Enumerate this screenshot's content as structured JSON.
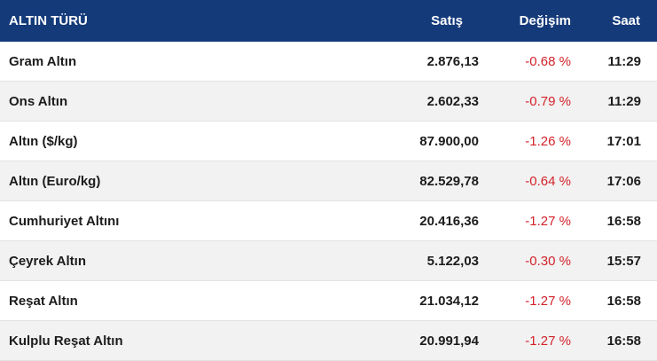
{
  "header": {
    "name": "ALTIN TÜRÜ",
    "sell": "Satış",
    "change": "Değişim",
    "time": "Saat"
  },
  "rows": [
    {
      "name": "Gram Altın",
      "sell": "2.876,13",
      "change": "-0.68 %",
      "time": "11:29"
    },
    {
      "name": "Ons Altın",
      "sell": "2.602,33",
      "change": "-0.79 %",
      "time": "11:29"
    },
    {
      "name": "Altın ($/kg)",
      "sell": "87.900,00",
      "change": "-1.26 %",
      "time": "17:01"
    },
    {
      "name": "Altın (Euro/kg)",
      "sell": "82.529,78",
      "change": "-0.64 %",
      "time": "17:06"
    },
    {
      "name": "Cumhuriyet Altını",
      "sell": "20.416,36",
      "change": "-1.27 %",
      "time": "16:58"
    },
    {
      "name": "Çeyrek Altın",
      "sell": "5.122,03",
      "change": "-0.30 %",
      "time": "15:57"
    },
    {
      "name": "Reşat Altın",
      "sell": "21.034,12",
      "change": "-1.27 %",
      "time": "16:58"
    },
    {
      "name": "Kulplu Reşat Altın",
      "sell": "20.991,94",
      "change": "-1.27 %",
      "time": "16:58"
    }
  ],
  "colors": {
    "header_bg": "#143a7a",
    "negative": "#d2232a",
    "alt_row_bg": "#f2f2f2"
  }
}
